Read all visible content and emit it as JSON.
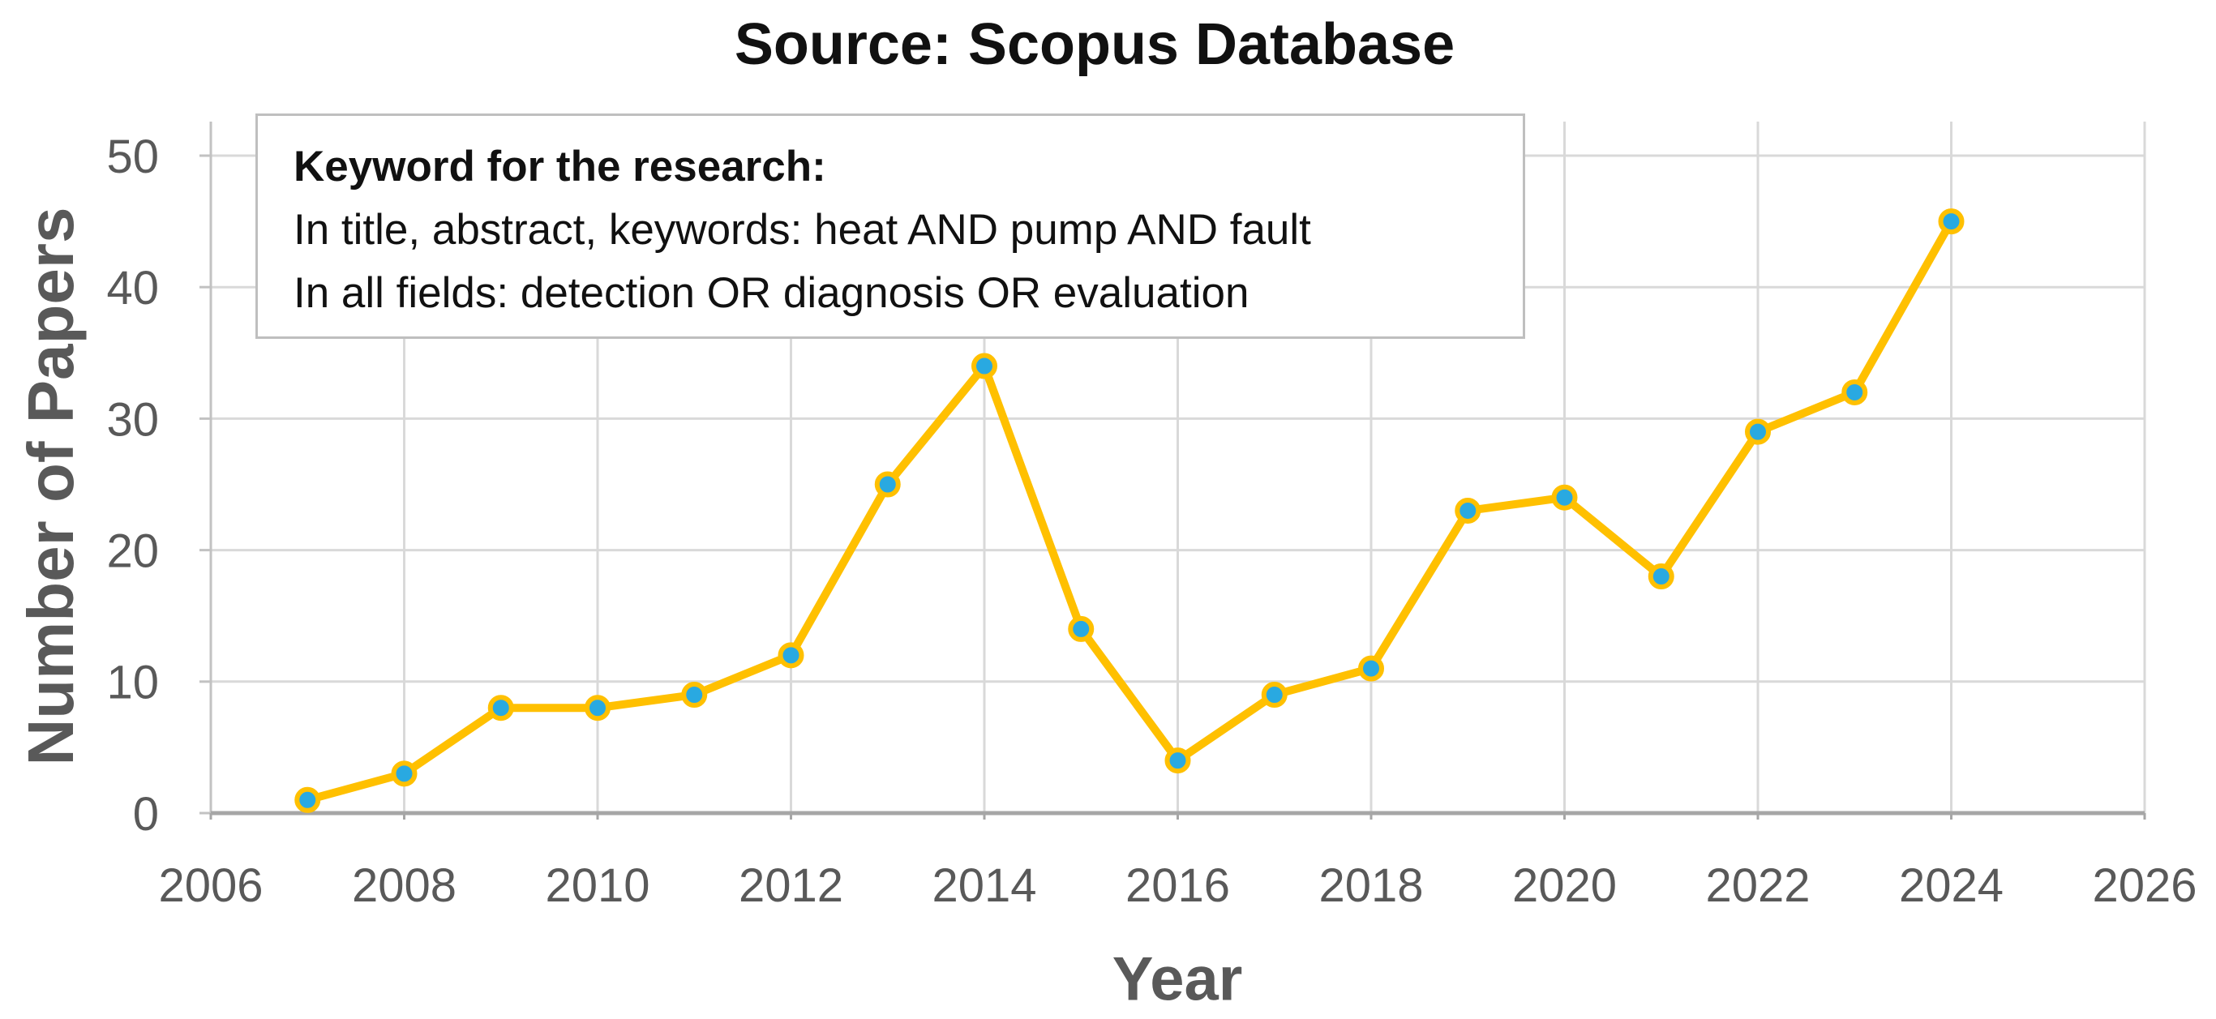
{
  "figure": {
    "title": "Source: Scopus Database",
    "y_axis_title": "Number of Papers",
    "x_axis_title": "Year",
    "annotation_box": {
      "heading": "Keyword for the research:",
      "lines": [
        "In title, abstract, keywords: heat AND pump AND fault",
        "In all fields: detection OR diagnosis OR evaluation"
      ]
    }
  },
  "chart_data": {
    "type": "line",
    "title": "Source: Scopus Database",
    "xlabel": "Year",
    "ylabel": "Number of Papers",
    "x": [
      2007,
      2008,
      2009,
      2010,
      2011,
      2012,
      2013,
      2014,
      2015,
      2016,
      2017,
      2018,
      2019,
      2020,
      2021,
      2022,
      2023,
      2024
    ],
    "values": [
      1,
      3,
      8,
      8,
      9,
      12,
      25,
      34,
      14,
      4,
      9,
      11,
      23,
      24,
      18,
      29,
      32,
      45
    ],
    "xlim": [
      2006,
      2026
    ],
    "ylim": [
      0,
      50
    ],
    "x_ticks": [
      2006,
      2008,
      2010,
      2012,
      2014,
      2016,
      2018,
      2020,
      2022,
      2024,
      2026
    ],
    "y_ticks": [
      0,
      10,
      20,
      30,
      40,
      50
    ],
    "grid": true,
    "legend": false,
    "colors": {
      "line": "#FFC000",
      "marker_fill": "#29A9E1",
      "marker_border": "#FFC000",
      "gridline": "#D9D9D9",
      "x_axis_line": "#A6A6A6",
      "y_axis_line": "#C2C2C2",
      "tick_label": "#595959",
      "axis_title": "#595959",
      "title": "#111111",
      "annotation_border": "#BFBFBF"
    }
  }
}
